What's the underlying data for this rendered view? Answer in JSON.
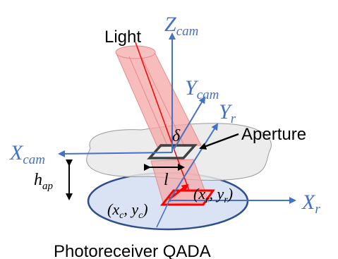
{
  "labels": {
    "light": "Light",
    "aperture": "Aperture",
    "photoreceiver": "Photoreceiver QADA",
    "z_cam_main": "Z",
    "z_cam_sub": "cam",
    "y_cam_main": "Y",
    "y_cam_sub": "cam",
    "y_r_main": "Y",
    "y_r_sub": "r",
    "x_cam_main": "X",
    "x_cam_sub": "cam",
    "x_r_main": "X",
    "x_r_sub": "r",
    "delta": "δ",
    "l": "l",
    "h_main": "h",
    "h_sub": "ap",
    "xc_open": "(x",
    "xc_sub": "c",
    "xc_mid": ", y",
    "yc_sub": "c",
    "xc_close": ")",
    "xr_open": "(x",
    "xr_sub": "r",
    "xr_mid": ", y",
    "yr_sub": "r",
    "xr_close": ")"
  },
  "colors": {
    "axis_blue": "#4472c4",
    "light_red": "#ff0000",
    "beam_fill": "#f4a6a6",
    "aperture_plane": "#e6e6e6",
    "receiver_fill": "#dae3f3",
    "receiver_edge": "#2f4e8c"
  }
}
